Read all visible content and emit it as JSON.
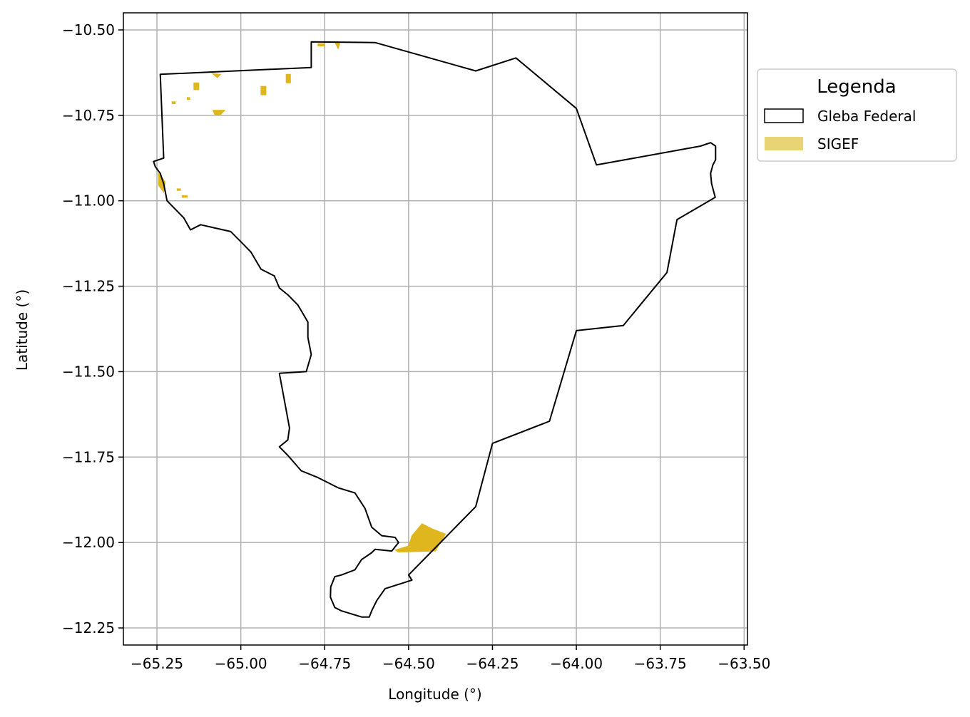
{
  "map": {
    "xlabel": "Longitude (°)",
    "ylabel": "Latitude (°)",
    "xlim": [
      -65.35,
      -63.49
    ],
    "ylim": [
      -12.3,
      -10.45
    ],
    "grid": true,
    "xticks": [
      -65.25,
      -65.0,
      -64.75,
      -64.5,
      -64.25,
      -64.0,
      -63.75,
      -63.5
    ],
    "xtick_labels": [
      "−65.25",
      "−65.00",
      "−64.75",
      "−64.50",
      "−64.25",
      "−64.00",
      "−63.75",
      "−63.50"
    ],
    "yticks": [
      -10.5,
      -10.75,
      -11.0,
      -11.25,
      -11.5,
      -11.75,
      -12.0,
      -12.25
    ],
    "ytick_labels": [
      "−10.50",
      "−10.75",
      "−11.00",
      "−11.25",
      "−11.50",
      "−11.75",
      "−12.00",
      "−12.25"
    ],
    "legend": {
      "title": "Legenda",
      "position": "outside-upper-right",
      "items": [
        {
          "label": "Gleba Federal",
          "style": "outline",
          "edge_color": "#000000",
          "fill_color": "#ffffff"
        },
        {
          "label": "SIGEF",
          "style": "fill",
          "fill_color": "#e8d375"
        }
      ]
    },
    "colors": {
      "boundary": "#000000",
      "sigef_fill": "#e0b61e",
      "grid": "#b0b0b0"
    },
    "layers": {
      "gleba_federal": [
        [
          -65.24,
          -10.63
        ],
        [
          -64.79,
          -10.61
        ],
        [
          -64.79,
          -10.535
        ],
        [
          -64.6,
          -10.537
        ],
        [
          -64.3,
          -10.62
        ],
        [
          -64.18,
          -10.582
        ],
        [
          -64.0,
          -10.73
        ],
        [
          -63.94,
          -10.895
        ],
        [
          -63.63,
          -10.84
        ],
        [
          -63.6,
          -10.83
        ],
        [
          -63.585,
          -10.84
        ],
        [
          -63.585,
          -10.88
        ],
        [
          -63.593,
          -10.895
        ],
        [
          -63.6,
          -10.92
        ],
        [
          -63.597,
          -10.95
        ],
        [
          -63.586,
          -10.99
        ],
        [
          -63.7,
          -11.055
        ],
        [
          -63.73,
          -11.21
        ],
        [
          -63.86,
          -11.365
        ],
        [
          -64.0,
          -11.38
        ],
        [
          -64.08,
          -11.645
        ],
        [
          -64.25,
          -11.71
        ],
        [
          -64.3,
          -11.895
        ],
        [
          -64.5,
          -12.095
        ],
        [
          -64.49,
          -12.11
        ],
        [
          -64.57,
          -12.135
        ],
        [
          -64.595,
          -12.17
        ],
        [
          -64.61,
          -12.2
        ],
        [
          -64.617,
          -12.218
        ],
        [
          -64.64,
          -12.218
        ],
        [
          -64.7,
          -12.2
        ],
        [
          -64.72,
          -12.19
        ],
        [
          -64.733,
          -12.16
        ],
        [
          -64.732,
          -12.13
        ],
        [
          -64.72,
          -12.1
        ],
        [
          -64.7,
          -12.095
        ],
        [
          -64.66,
          -12.08
        ],
        [
          -64.64,
          -12.05
        ],
        [
          -64.61,
          -12.03
        ],
        [
          -64.6,
          -12.02
        ],
        [
          -64.55,
          -12.025
        ],
        [
          -64.53,
          -12.0
        ],
        [
          -64.54,
          -11.985
        ],
        [
          -64.58,
          -11.98
        ],
        [
          -64.61,
          -11.955
        ],
        [
          -64.63,
          -11.9
        ],
        [
          -64.66,
          -11.855
        ],
        [
          -64.71,
          -11.84
        ],
        [
          -64.77,
          -11.81
        ],
        [
          -64.82,
          -11.79
        ],
        [
          -64.86,
          -11.745
        ],
        [
          -64.885,
          -11.72
        ],
        [
          -64.86,
          -11.7
        ],
        [
          -64.855,
          -11.665
        ],
        [
          -64.885,
          -11.505
        ],
        [
          -64.805,
          -11.5
        ],
        [
          -64.79,
          -11.45
        ],
        [
          -64.8,
          -11.4
        ],
        [
          -64.8,
          -11.355
        ],
        [
          -64.83,
          -11.305
        ],
        [
          -64.86,
          -11.275
        ],
        [
          -64.885,
          -11.255
        ],
        [
          -64.9,
          -11.22
        ],
        [
          -64.94,
          -11.2
        ],
        [
          -64.97,
          -11.15
        ],
        [
          -65.0,
          -11.12
        ],
        [
          -65.03,
          -11.09
        ],
        [
          -65.075,
          -11.08
        ],
        [
          -65.12,
          -11.07
        ],
        [
          -65.15,
          -11.085
        ],
        [
          -65.17,
          -11.05
        ],
        [
          -65.2,
          -11.02
        ],
        [
          -65.22,
          -11.0
        ],
        [
          -65.23,
          -10.95
        ],
        [
          -65.24,
          -10.92
        ],
        [
          -65.255,
          -10.9
        ],
        [
          -65.26,
          -10.885
        ],
        [
          -65.23,
          -10.875
        ],
        [
          -65.24,
          -10.63
        ]
      ],
      "sigef": [
        [
          [
            -64.43,
            -11.96
          ],
          [
            -64.39,
            -11.975
          ],
          [
            -64.42,
            -12.025
          ],
          [
            -64.53,
            -12.028
          ],
          [
            -64.54,
            -12.022
          ],
          [
            -64.5,
            -12.01
          ],
          [
            -64.49,
            -11.98
          ],
          [
            -64.46,
            -11.945
          ]
        ],
        [
          [
            -65.245,
            -10.92
          ],
          [
            -65.225,
            -10.945
          ],
          [
            -65.23,
            -10.975
          ],
          [
            -65.245,
            -10.955
          ]
        ],
        [
          [
            -65.083,
            -10.735
          ],
          [
            -65.048,
            -10.735
          ],
          [
            -65.06,
            -10.748
          ],
          [
            -65.078,
            -10.748
          ]
        ],
        [
          [
            -64.94,
            -10.665
          ],
          [
            -64.925,
            -10.665
          ],
          [
            -64.925,
            -10.69
          ],
          [
            -64.94,
            -10.69
          ]
        ],
        [
          [
            -64.865,
            -10.63
          ],
          [
            -64.852,
            -10.63
          ],
          [
            -64.852,
            -10.655
          ],
          [
            -64.865,
            -10.655
          ]
        ],
        [
          [
            -65.14,
            -10.655
          ],
          [
            -65.125,
            -10.655
          ],
          [
            -65.125,
            -10.675
          ],
          [
            -65.14,
            -10.675
          ]
        ],
        [
          [
            -65.085,
            -10.628
          ],
          [
            -65.06,
            -10.63
          ],
          [
            -65.07,
            -10.64
          ]
        ],
        [
          [
            -64.77,
            -10.54
          ],
          [
            -64.75,
            -10.54
          ],
          [
            -64.75,
            -10.547
          ],
          [
            -64.77,
            -10.547
          ]
        ],
        [
          [
            -64.72,
            -10.535
          ],
          [
            -64.705,
            -10.54
          ],
          [
            -64.71,
            -10.555
          ]
        ],
        [
          [
            -65.205,
            -10.71
          ],
          [
            -65.195,
            -10.71
          ],
          [
            -65.195,
            -10.716
          ],
          [
            -65.205,
            -10.716
          ]
        ],
        [
          [
            -65.175,
            -10.985
          ],
          [
            -65.16,
            -10.985
          ],
          [
            -65.16,
            -10.99
          ],
          [
            -65.175,
            -10.99
          ]
        ],
        [
          [
            -65.19,
            -10.965
          ],
          [
            -65.18,
            -10.965
          ],
          [
            -65.18,
            -10.97
          ],
          [
            -65.19,
            -10.97
          ]
        ],
        [
          [
            -65.16,
            -10.698
          ],
          [
            -65.152,
            -10.698
          ],
          [
            -65.152,
            -10.704
          ],
          [
            -65.16,
            -10.704
          ]
        ]
      ]
    }
  }
}
